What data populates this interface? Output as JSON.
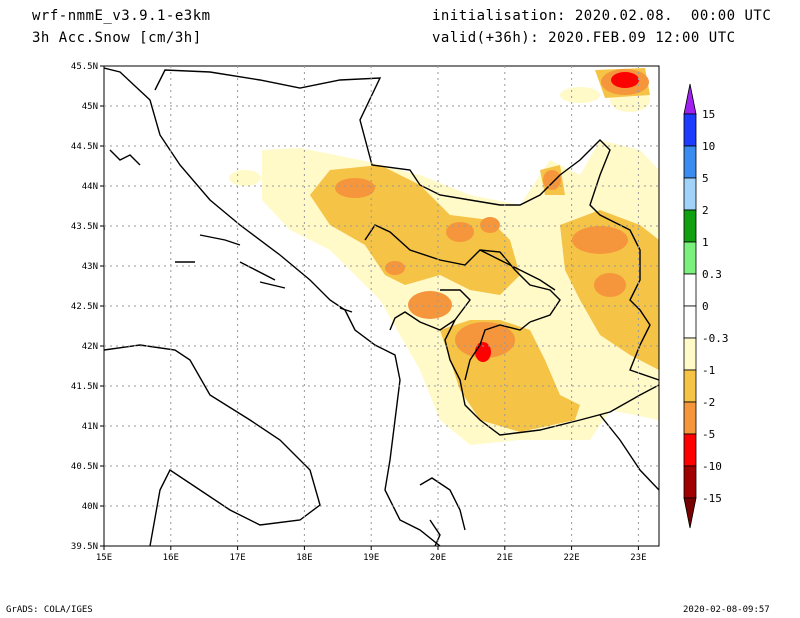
{
  "header": {
    "model": "wrf-nmmE_v3.9.1-e3km",
    "field": "3h Acc.Snow [cm/3h]",
    "init": "initialisation: 2020.02.08.  00:00 UTC",
    "valid": "valid(+36h): 2020.FEB.09 12:00 UTC"
  },
  "footer": {
    "credit": "GrADS: COLA/IGES",
    "timestamp": "2020-02-08-09:57"
  },
  "map": {
    "lat_labels": [
      "45.5N",
      "45N",
      "44.5N",
      "44N",
      "43.5N",
      "43N",
      "42.5N",
      "42N",
      "41.5N",
      "41N",
      "40.5N",
      "40N",
      "39.5N"
    ],
    "lon_labels": [
      "15E",
      "16E",
      "17E",
      "18E",
      "19E",
      "20E",
      "21E",
      "22E",
      "23E"
    ]
  },
  "colorbar": {
    "levels": [
      "15",
      "10",
      "5",
      "2",
      "1",
      "0.3",
      "0",
      "-0.3",
      "-1",
      "-2",
      "-5",
      "-10",
      "-15"
    ],
    "colors": [
      "#1e3cff",
      "#3a8cf0",
      "#a0d2fa",
      "#10a010",
      "#7cf07c",
      "#ffffff",
      "#ffffff",
      "#fffac8",
      "#f5c346",
      "#f5963c",
      "#ff0000",
      "#a00000"
    ],
    "top_arrow_color": "#a020f0",
    "bottom_arrow_color": "#780000"
  }
}
